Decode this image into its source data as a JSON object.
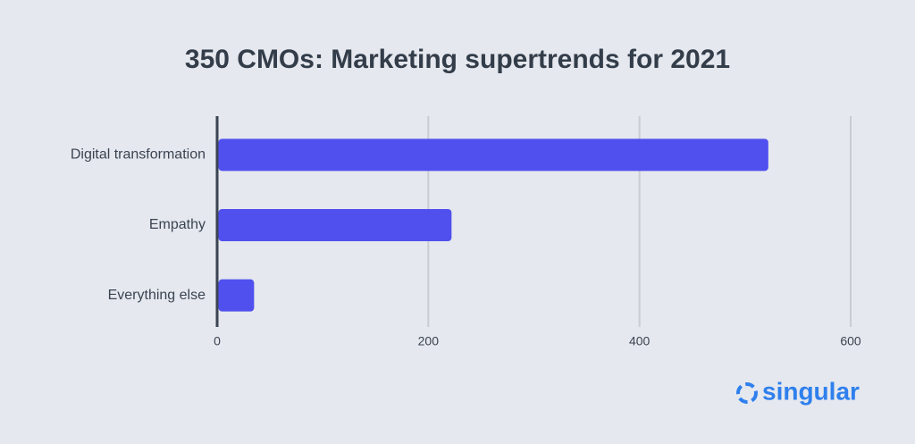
{
  "chart_data": {
    "type": "bar",
    "orientation": "horizontal",
    "title": "350 CMOs: Marketing supertrends for 2021",
    "categories": [
      "Digital transformation",
      "Empathy",
      "Everything else"
    ],
    "values": [
      522,
      222,
      35
    ],
    "color": "#5050ef",
    "xlim": [
      0,
      600
    ],
    "xticks": [
      0,
      200,
      400,
      600
    ],
    "grid": true
  },
  "brand": "singular"
}
